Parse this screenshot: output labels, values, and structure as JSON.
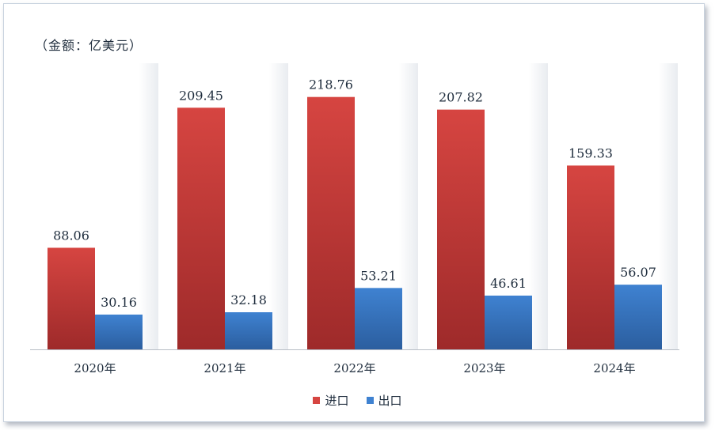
{
  "unit_label": "（金额：亿美元）",
  "colors": {
    "import_top": "#d64541",
    "import_bottom": "#9e2a2a",
    "export_top": "#3f82d1",
    "export_bottom": "#2b5e9f"
  },
  "chart_data": {
    "type": "bar",
    "categories": [
      "2020年",
      "2021年",
      "2022年",
      "2023年",
      "2024年"
    ],
    "series": [
      {
        "name": "进口",
        "values": [
          88.06,
          209.45,
          218.76,
          207.82,
          159.33
        ]
      },
      {
        "name": "出口",
        "values": [
          30.16,
          32.18,
          53.21,
          46.61,
          56.07
        ]
      }
    ],
    "ylim": [
      0,
      248
    ],
    "legend": "bottom-center",
    "grid": false
  }
}
